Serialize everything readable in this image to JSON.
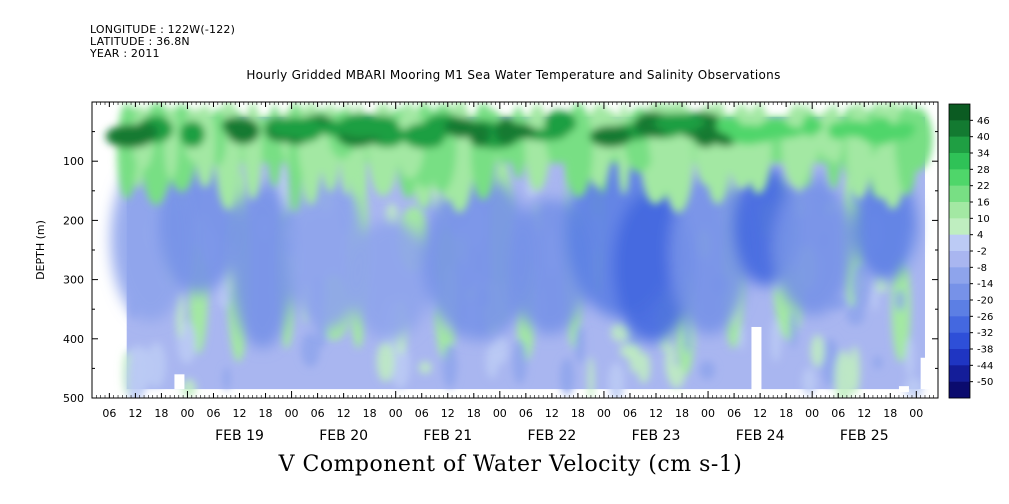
{
  "header": {
    "longitude": "LONGITUDE : 122W(-122)",
    "latitude": "LATITUDE : 36.8N",
    "year": "YEAR : 2011",
    "title": "Hourly Gridded MBARI Mooring M1 Sea Water Temperature and Salinity Observations"
  },
  "chart_data": {
    "type": "heatmap",
    "title": "Hourly Gridded MBARI Mooring M1 Sea Water Temperature and Salinity Observations",
    "variable_title": "V Component of Water Velocity (cm s-1)",
    "xlabel": "",
    "ylabel": "DEPTH (m)",
    "x_range": [
      "2011-02-18 02:00",
      "2011-02-26 05:00"
    ],
    "data_extent": [
      "2011-02-18 10:00",
      "2011-02-26 02:00"
    ],
    "ylim": [
      500,
      0
    ],
    "depth_range_of_data": [
      25,
      485
    ],
    "y_ticks": [
      100,
      200,
      300,
      400,
      500
    ],
    "x_hour_ticks": [
      "06",
      "12",
      "18",
      "00",
      "06",
      "12",
      "18",
      "00",
      "06",
      "12",
      "18",
      "00",
      "06",
      "12",
      "18",
      "00",
      "06",
      "12",
      "18",
      "00",
      "06",
      "12",
      "18",
      "00",
      "06",
      "12",
      "18",
      "00",
      "06",
      "12",
      "18",
      "00"
    ],
    "x_day_labels": [
      "FEB 19",
      "FEB 20",
      "FEB 21",
      "FEB 22",
      "FEB 23",
      "FEB 24",
      "FEB 25"
    ],
    "colorbar": {
      "levels": [
        -50,
        -44,
        -38,
        -32,
        -26,
        -20,
        -14,
        -8,
        -2,
        4,
        10,
        16,
        22,
        28,
        34,
        40,
        46
      ],
      "colors": [
        "#0b0b6e",
        "#141d99",
        "#1f35c2",
        "#2e4fd8",
        "#4468e0",
        "#5c7fe4",
        "#7792e8",
        "#8ea4ec",
        "#a9b6f0",
        "#bccbf5",
        "#bfeec0",
        "#a3e8a3",
        "#78df84",
        "#4fd66a",
        "#2fc257",
        "#1f9f43",
        "#137a31",
        "#0b5b22"
      ],
      "tick_labels": [
        "46",
        "40",
        "34",
        "28",
        "22",
        "16",
        "10",
        "4",
        "-2",
        "-8",
        "-14",
        "-20",
        "-26",
        "-32",
        "-38",
        "-44",
        "-50"
      ]
    },
    "description_of_field": "Positive (green) velocities dominate upper ~100 m throughout; below, mostly weak negative (lavender) with blue cores near FEB 19, FEB 23 and FEB 24 and green columns near FEB 20-22 and FEB 24."
  }
}
